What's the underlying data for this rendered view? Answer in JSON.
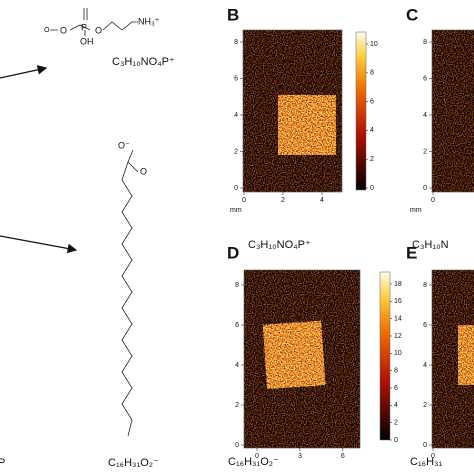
{
  "left": {
    "structure_1_labels": [
      "O",
      "O",
      "P",
      "O",
      "OH",
      "NH₃⁺"
    ],
    "formula_1": "C₃H₁₀NO₄P⁺",
    "structure_2_labels": [
      "O⁻",
      "O"
    ],
    "formula_2": "C₁₆H₃₁O₂⁻",
    "edge_label": "P"
  },
  "panels": [
    {
      "label": "B",
      "xticks": [
        0,
        2,
        4
      ],
      "yticks": [
        0,
        2,
        4,
        6,
        8
      ],
      "unit": "mm",
      "colorbar_ticks": [
        0,
        2,
        4,
        6,
        8,
        10
      ],
      "caption": "C₃H₁₀NO₄P⁺"
    },
    {
      "label": "C",
      "xticks": [
        0
      ],
      "yticks": [
        0,
        2,
        4,
        6,
        8
      ],
      "unit": "mm",
      "caption": "C₃H₁₀N"
    },
    {
      "label": "D",
      "xticks": [
        0,
        3,
        6
      ],
      "yticks": [
        0,
        2,
        4,
        6,
        8
      ],
      "colorbar_ticks": [
        0,
        2,
        4,
        6,
        8,
        10,
        12,
        14,
        16,
        18
      ],
      "caption": "C₁₆H₃₁O₂⁻"
    },
    {
      "label": "E",
      "xticks": [
        0
      ],
      "yticks": [
        0,
        2,
        4,
        6,
        8
      ],
      "caption": "C₁₆H₃₁"
    }
  ]
}
